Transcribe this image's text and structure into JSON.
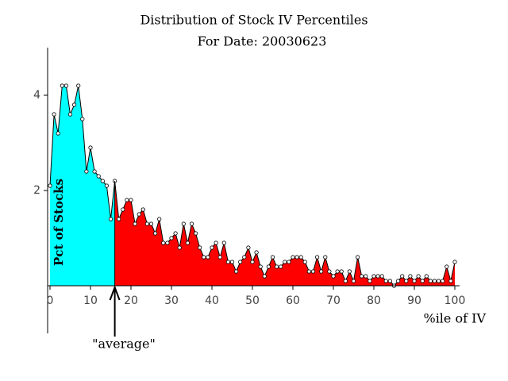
{
  "chart_data": {
    "type": "area",
    "title": "Distribution of Stock IV Percentiles",
    "subtitle": "For Date: 20030623",
    "x_label": "%ile of IV",
    "y_label": "Pct of Stocks",
    "average": 16,
    "average_label": "\"average\"",
    "colors": {
      "below_average": "#00ffff",
      "above_average": "#ff0000",
      "line": "#000000"
    },
    "x": [
      0,
      1,
      2,
      3,
      4,
      5,
      6,
      7,
      8,
      9,
      10,
      11,
      12,
      13,
      14,
      15,
      16,
      17,
      18,
      19,
      20,
      21,
      22,
      23,
      24,
      25,
      26,
      27,
      28,
      29,
      30,
      31,
      32,
      33,
      34,
      35,
      36,
      37,
      38,
      39,
      40,
      41,
      42,
      43,
      44,
      45,
      46,
      47,
      48,
      49,
      50,
      51,
      52,
      53,
      54,
      55,
      56,
      57,
      58,
      59,
      60,
      61,
      62,
      63,
      64,
      65,
      66,
      67,
      68,
      69,
      70,
      71,
      72,
      73,
      74,
      75,
      76,
      77,
      78,
      79,
      80,
      81,
      82,
      83,
      84,
      85,
      86,
      87,
      88,
      89,
      90,
      91,
      92,
      93,
      94,
      95,
      96,
      97,
      98,
      99,
      100
    ],
    "values": [
      2.1,
      3.6,
      3.2,
      4.2,
      4.2,
      3.6,
      3.8,
      4.2,
      3.5,
      2.4,
      2.9,
      2.4,
      2.3,
      2.2,
      2.1,
      1.4,
      2.2,
      1.4,
      1.6,
      1.8,
      1.8,
      1.3,
      1.5,
      1.6,
      1.3,
      1.3,
      1.1,
      1.4,
      0.9,
      0.9,
      1.0,
      1.1,
      0.8,
      1.3,
      0.9,
      1.3,
      1.1,
      0.8,
      0.6,
      0.6,
      0.8,
      0.9,
      0.6,
      0.9,
      0.5,
      0.5,
      0.3,
      0.5,
      0.6,
      0.8,
      0.5,
      0.7,
      0.4,
      0.2,
      0.4,
      0.6,
      0.4,
      0.4,
      0.5,
      0.5,
      0.6,
      0.6,
      0.6,
      0.5,
      0.3,
      0.3,
      0.6,
      0.3,
      0.6,
      0.3,
      0.2,
      0.3,
      0.3,
      0.1,
      0.3,
      0.1,
      0.6,
      0.2,
      0.2,
      0.1,
      0.2,
      0.2,
      0.2,
      0.1,
      0.1,
      0,
      0.1,
      0.2,
      0.1,
      0.2,
      0.1,
      0.2,
      0.1,
      0.2,
      0.1,
      0.1,
      0.1,
      0.1,
      0.4,
      0.1,
      0.5
    ],
    "xlim": [
      0,
      100
    ],
    "xticks": [
      0,
      10,
      20,
      30,
      40,
      50,
      60,
      70,
      80,
      90,
      100
    ],
    "ylim": [
      -1,
      5
    ],
    "yticks": [
      2,
      4
    ]
  }
}
